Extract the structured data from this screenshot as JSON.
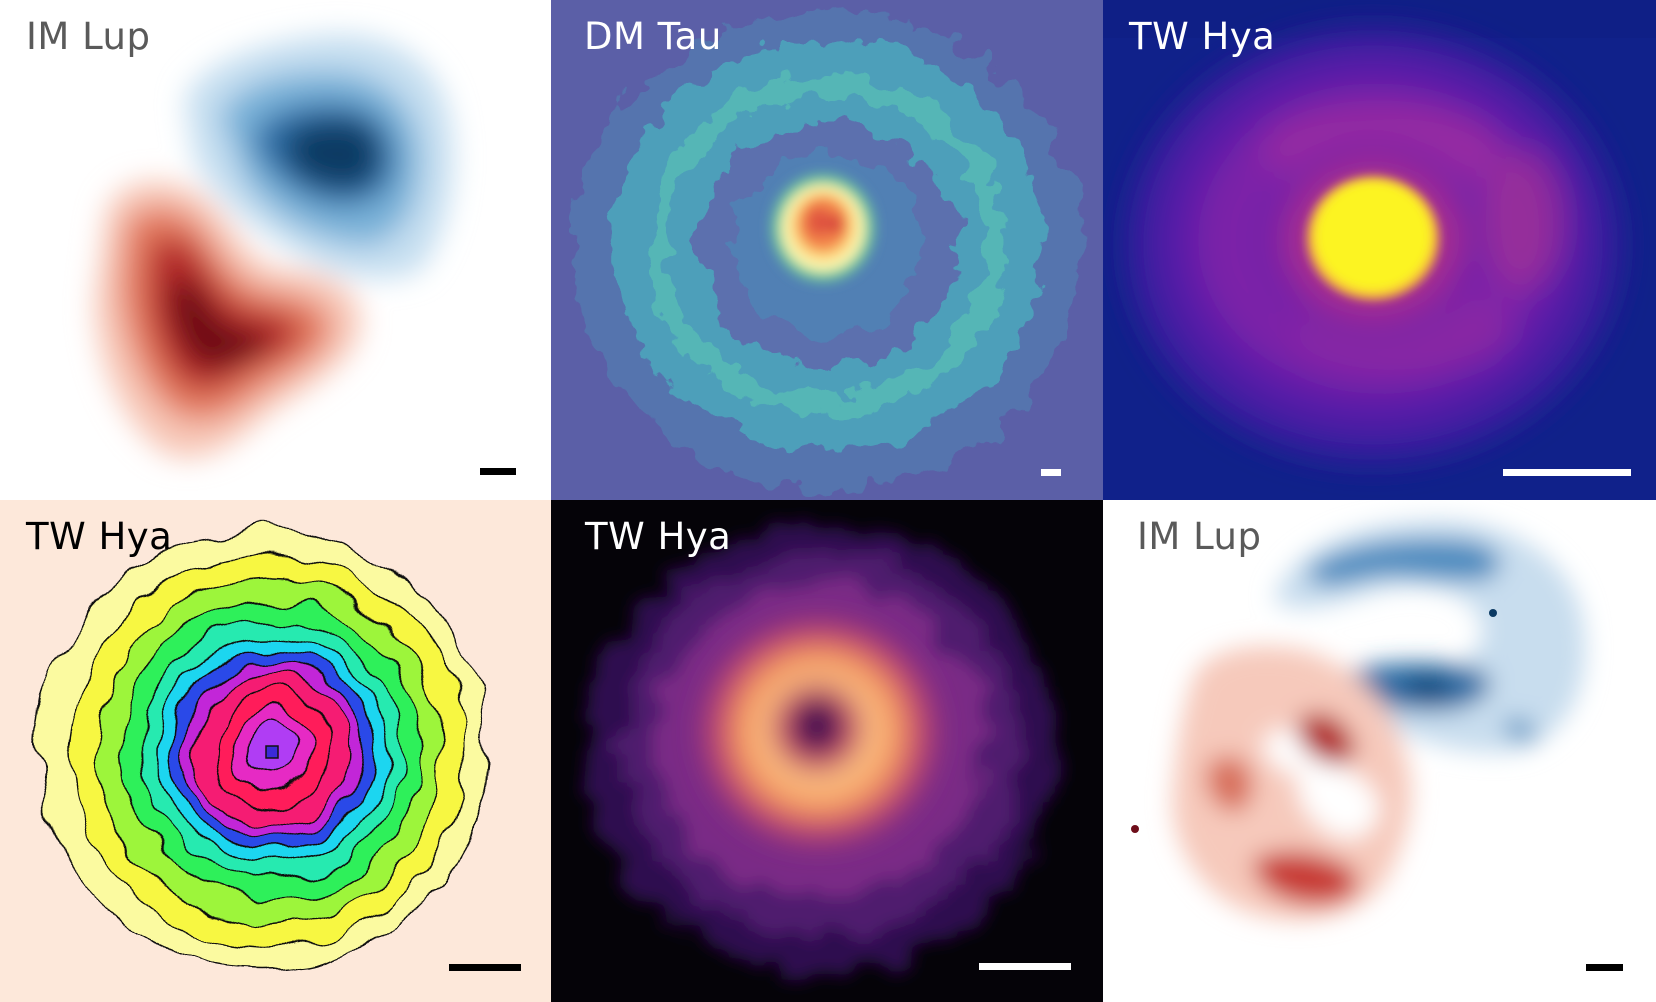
{
  "panels": [
    {
      "id": "p1",
      "label": "IM Lup",
      "label_color": "#5a5a5a",
      "scalebar_color": "#000000"
    },
    {
      "id": "p2",
      "label": "DM Tau",
      "label_color": "#ffffff",
      "scalebar_color": "#ffffff"
    },
    {
      "id": "p3",
      "label": "TW Hya",
      "label_color": "#ffffff",
      "scalebar_color": "#ffffff"
    },
    {
      "id": "p4",
      "label": "TW Hya",
      "label_color": "#000000",
      "scalebar_color": "#000000"
    },
    {
      "id": "p5",
      "label": "TW Hya",
      "label_color": "#ffffff",
      "scalebar_color": "#ffffff"
    },
    {
      "id": "p6",
      "label": "IM Lup",
      "label_color": "#5a5a5a",
      "scalebar_color": "#000000"
    }
  ]
}
